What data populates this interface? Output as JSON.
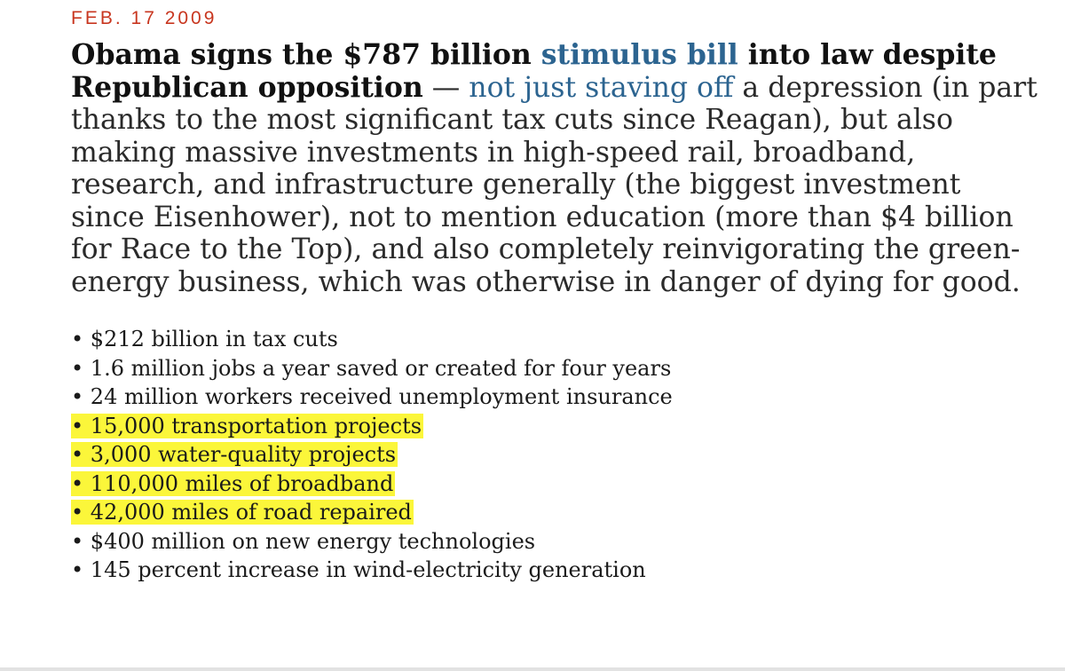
{
  "dateline": "FEB. 17 2009",
  "lede": {
    "headline_pre": "Obama signs the $787 billion ",
    "headline_link": "stimulus bill",
    "headline_post": " into law despite Republican opposition",
    "dash": " — ",
    "body_link": "not just staving off",
    "body_text": " a depression (in part thanks to the most significant tax cuts since Reagan), but also making massive investments in high-speed rail, broadband, research, and infrastructure generally (the biggest investment since Eisenhower), not to mention education (more than $4 billion for Race to the Top), and also completely reinvigorating the green-energy business, which was otherwise in danger of dying for good."
  },
  "bullet_marker": "•",
  "bullets": [
    {
      "text": "$212 billion in tax cuts",
      "highlighted": false
    },
    {
      "text": "1.6 million jobs a year saved or created for four years",
      "highlighted": false
    },
    {
      "text": "24 million workers received unemployment insurance",
      "highlighted": false
    },
    {
      "text": "15,000 transportation projects",
      "highlighted": true
    },
    {
      "text": "3,000 water-quality projects",
      "highlighted": true
    },
    {
      "text": "110,000 miles of broadband",
      "highlighted": true
    },
    {
      "text": "42,000 miles of road repaired",
      "highlighted": true
    },
    {
      "text": "$400 million on new energy technologies",
      "highlighted": false
    },
    {
      "text": "145 percent increase in wind-electricity generation",
      "highlighted": false
    }
  ],
  "colors": {
    "dateline": "#c8361f",
    "link": "#2c6490",
    "highlight": "#fbf63a"
  }
}
